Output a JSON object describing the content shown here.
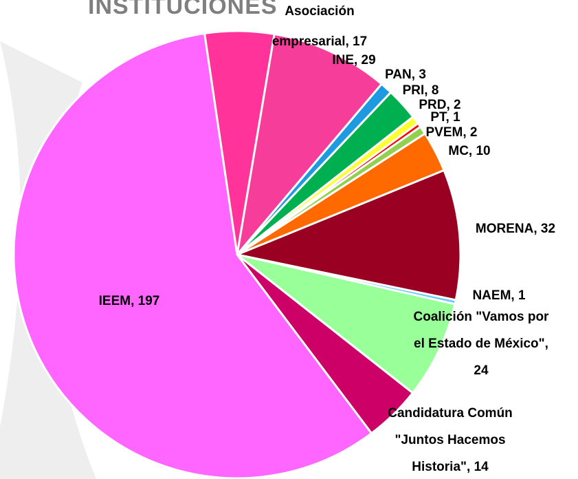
{
  "chart_data": {
    "type": "pie",
    "title": "INSTITUCIONES",
    "categories": [
      "Asociación empresarial",
      "INE",
      "PAN",
      "PRI",
      "PRD",
      "PT",
      "PVEM",
      "MC",
      "MORENA",
      "NAEM",
      "Coalición \"Vamos por el Estado de México\"",
      "Candidatura Común \"Juntos Hacemos Historia\"",
      "IEEM"
    ],
    "values": [
      17,
      29,
      3,
      8,
      2,
      1,
      2,
      10,
      32,
      1,
      24,
      14,
      197
    ],
    "value_labels": [
      "Asociación empresarial, 17",
      "INE, 29",
      "PAN, 3",
      "PRI, 8",
      "PRD, 2",
      "PT, 1",
      "PVEM, 2",
      "MC, 10",
      "MORENA, 32",
      "NAEM, 1",
      "Coalición \"Vamos por el Estado de México\", 24",
      "Candidatura Común \"Juntos Hacemos Historia\", 14",
      "IEEM, 197"
    ],
    "colors": [
      "#ff3399",
      "#f73d9a",
      "#1e9be0",
      "#00b050",
      "#ffff33",
      "#ff0000",
      "#92d050",
      "#ff6a00",
      "#990022",
      "#66ccff",
      "#99ff99",
      "#cc0066",
      "#ff66ff"
    ]
  }
}
